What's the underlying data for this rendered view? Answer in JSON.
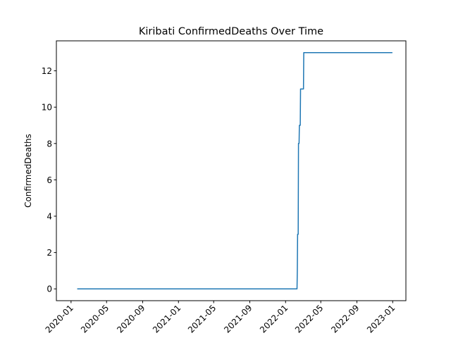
{
  "chart_data": {
    "type": "line",
    "title": "Kiribati  ConfirmedDeaths Over Time",
    "xlabel": "",
    "ylabel": "ConfirmedDeaths",
    "x_ticks": [
      "2020-01",
      "2020-05",
      "2020-09",
      "2021-01",
      "2021-05",
      "2021-09",
      "2022-01",
      "2022-05",
      "2022-09",
      "2023-01"
    ],
    "y_ticks": [
      0,
      2,
      4,
      6,
      8,
      10,
      12
    ],
    "xlim": [
      "2019-11-12",
      "2023-02-15"
    ],
    "ylim": [
      -0.65,
      13.65
    ],
    "grid": false,
    "color": "#1f77b4",
    "series": [
      {
        "x": [
          "2020-01-22",
          "2022-02-09",
          "2022-02-10",
          "2022-02-11",
          "2022-02-13",
          "2022-02-14",
          "2022-02-16",
          "2022-02-17",
          "2022-02-20",
          "2022-02-21",
          "2022-03-03",
          "2022-03-04",
          "2022-12-31"
        ],
        "values": [
          0,
          0,
          1,
          3,
          3,
          8,
          8,
          9,
          9,
          11,
          11,
          13,
          13
        ]
      }
    ]
  }
}
